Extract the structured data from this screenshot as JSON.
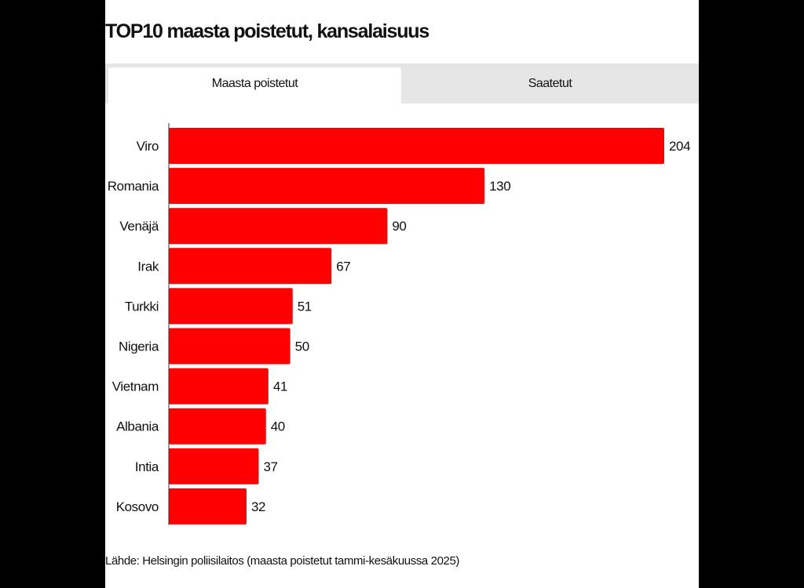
{
  "title": "TOP10 maasta poistetut, kansalaisuus",
  "tabs": [
    {
      "label": "Maasta poistetut",
      "active": true
    },
    {
      "label": "Saatetut",
      "active": false
    }
  ],
  "source": "Lähde: Helsingin poliisilaitos (maasta poistetut tammi-kesäkuussa 2025)",
  "colors": {
    "bar": "#ff0000",
    "background": "#ffffff",
    "tab_inactive": "#e6e6e6"
  },
  "chart_data": {
    "type": "bar",
    "orientation": "horizontal",
    "categories": [
      "Viro",
      "Romania",
      "Venäjä",
      "Irak",
      "Turkki",
      "Nigeria",
      "Vietnam",
      "Albania",
      "Intia",
      "Kosovo"
    ],
    "values": [
      204,
      130,
      90,
      67,
      51,
      50,
      41,
      40,
      37,
      32
    ],
    "data_labels": true,
    "grid": false,
    "xlim": [
      0,
      204
    ]
  }
}
